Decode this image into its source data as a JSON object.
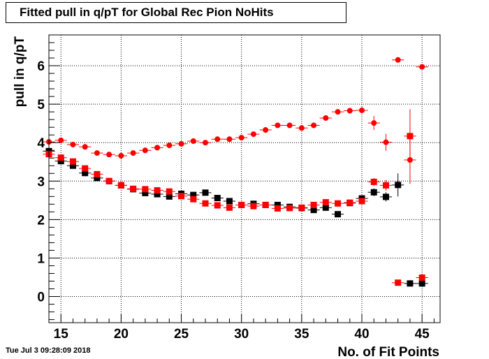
{
  "header": {
    "title": "Fitted pull in q/pT for Global Rec Pion NoHits"
  },
  "footer": {
    "timestamp": "Tue Jul  3 09:28:09 2018"
  },
  "chart_data": {
    "type": "scatter",
    "title": "Fitted pull in q/pT for Global Rec Pion NoHits",
    "xlabel": "No. of Fit Points",
    "ylabel": "pull in q/pT",
    "xlim": [
      14,
      46.5
    ],
    "ylim": [
      -0.68,
      6.8
    ],
    "xticks": [
      "15",
      "20",
      "25",
      "30",
      "35",
      "40",
      "45"
    ],
    "yticks": [
      "0",
      "1",
      "2",
      "3",
      "4",
      "5",
      "6"
    ],
    "grid": true,
    "colors": {
      "black": "#000000",
      "red": "#ff0000"
    },
    "series": [
      {
        "marker": "circle",
        "color": "#ff0000",
        "x": [
          14,
          15,
          16,
          17,
          18,
          19,
          20,
          21,
          22,
          23,
          24,
          25,
          26,
          27,
          28,
          29,
          30,
          31,
          32,
          33,
          34,
          35,
          36,
          37,
          38,
          39,
          40,
          41,
          42,
          43,
          44,
          45
        ],
        "y": [
          4.02,
          4.06,
          3.95,
          3.89,
          3.73,
          3.69,
          3.66,
          3.73,
          3.8,
          3.87,
          3.93,
          3.97,
          4.04,
          4.0,
          4.09,
          4.09,
          4.13,
          4.22,
          4.33,
          4.45,
          4.45,
          4.38,
          4.45,
          4.64,
          4.8,
          4.83,
          4.84,
          4.51,
          4.01,
          6.15,
          3.55,
          5.97
        ],
        "yerr": [
          0.05,
          0.05,
          0.04,
          0.04,
          0.04,
          0.04,
          0.04,
          0.04,
          0.04,
          0.04,
          0.04,
          0.04,
          0.04,
          0.04,
          0.04,
          0.04,
          0.05,
          0.05,
          0.05,
          0.05,
          0.05,
          0.05,
          0.05,
          0.06,
          0.06,
          0.07,
          0.08,
          0.18,
          0.22,
          0.05,
          0.62,
          0.05
        ]
      },
      {
        "marker": "square",
        "color": "#000000",
        "x": [
          14,
          15,
          16,
          17,
          18,
          19,
          20,
          21,
          22,
          23,
          24,
          25,
          26,
          27,
          28,
          29,
          30,
          31,
          32,
          33,
          34,
          35,
          36,
          37,
          38,
          39,
          40,
          41,
          42,
          43,
          44,
          45
        ],
        "y": [
          3.78,
          3.52,
          3.4,
          3.21,
          3.08,
          3.0,
          2.89,
          2.79,
          2.69,
          2.66,
          2.6,
          2.67,
          2.64,
          2.7,
          2.56,
          2.48,
          2.38,
          2.41,
          2.38,
          2.38,
          2.33,
          2.3,
          2.25,
          2.31,
          2.14,
          2.43,
          2.55,
          2.71,
          2.59,
          2.9,
          0.34,
          0.34
        ],
        "yerr": [
          0.05,
          0.04,
          0.04,
          0.04,
          0.04,
          0.04,
          0.04,
          0.03,
          0.03,
          0.03,
          0.03,
          0.03,
          0.03,
          0.03,
          0.03,
          0.03,
          0.03,
          0.03,
          0.03,
          0.03,
          0.03,
          0.03,
          0.03,
          0.04,
          0.04,
          0.04,
          0.05,
          0.1,
          0.12,
          0.3,
          0.03,
          0.06
        ]
      },
      {
        "marker": "square",
        "color": "#ff0000",
        "x": [
          14,
          15,
          16,
          17,
          18,
          19,
          20,
          21,
          22,
          23,
          24,
          25,
          26,
          27,
          28,
          29,
          30,
          31,
          32,
          33,
          34,
          35,
          36,
          37,
          38,
          39,
          40,
          41,
          42,
          43,
          44,
          45
        ],
        "y": [
          3.7,
          3.61,
          3.51,
          3.33,
          3.18,
          3.0,
          2.89,
          2.8,
          2.79,
          2.76,
          2.73,
          2.61,
          2.53,
          2.42,
          2.37,
          2.31,
          2.38,
          2.35,
          2.38,
          2.29,
          2.3,
          2.31,
          2.38,
          2.45,
          2.42,
          2.44,
          2.48,
          2.98,
          2.89,
          0.36,
          4.17,
          0.49
        ],
        "yerr": [
          0.05,
          0.04,
          0.04,
          0.04,
          0.04,
          0.04,
          0.04,
          0.03,
          0.03,
          0.03,
          0.03,
          0.03,
          0.03,
          0.03,
          0.03,
          0.03,
          0.03,
          0.03,
          0.03,
          0.03,
          0.03,
          0.03,
          0.03,
          0.04,
          0.04,
          0.04,
          0.05,
          0.1,
          0.14,
          0.03,
          0.7,
          0.04
        ]
      }
    ]
  }
}
